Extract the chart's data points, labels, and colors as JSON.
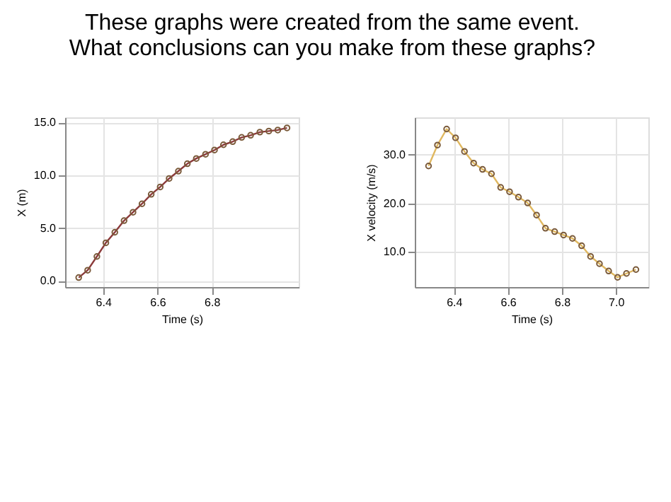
{
  "chart_data": [
    {
      "type": "line",
      "title": "These graphs were created from the same event.\nWhat conclusions can you make from these graphs?",
      "xlabel": "Time (s)",
      "ylabel": "X (m)",
      "x": [
        6.31,
        6.343,
        6.377,
        6.41,
        6.443,
        6.477,
        6.51,
        6.543,
        6.577,
        6.61,
        6.643,
        6.677,
        6.71,
        6.743,
        6.777,
        6.81,
        6.843,
        6.877,
        6.91,
        6.943,
        6.977,
        7.01,
        7.043,
        7.077
      ],
      "series": [
        {
          "color": "#8b3a3a",
          "values": [
            0.3,
            1.0,
            2.3,
            3.6,
            4.6,
            5.7,
            6.5,
            7.3,
            8.2,
            8.9,
            9.7,
            10.4,
            11.1,
            11.6,
            12.0,
            12.4,
            12.9,
            13.2,
            13.6,
            13.8,
            14.1,
            14.2,
            14.3,
            14.5
          ]
        }
      ],
      "xlim": [
        6.26,
        7.12
      ],
      "ylim": [
        -0.6,
        15.5
      ],
      "xticks": [
        6.4,
        6.6,
        6.8
      ],
      "yticks": [
        {
          "value": 0,
          "label": "0.0"
        },
        {
          "value": 5,
          "label": "5.0"
        },
        {
          "value": 10,
          "label": "10.0"
        },
        {
          "value": 15,
          "label": "15.0"
        }
      ],
      "grid": true,
      "marker": "circle",
      "line_style": "solid"
    },
    {
      "type": "line",
      "xlabel": "Time (s)",
      "ylabel": "X velocity (m/s)",
      "x": [
        6.306,
        6.339,
        6.373,
        6.406,
        6.439,
        6.473,
        6.506,
        6.539,
        6.573,
        6.606,
        6.639,
        6.673,
        6.706,
        6.739,
        6.773,
        6.806,
        6.839,
        6.873,
        6.906,
        6.939,
        6.973,
        7.006,
        7.039,
        7.074
      ],
      "series": [
        {
          "color": "#e0b860",
          "values": [
            27.7,
            32.0,
            35.3,
            33.5,
            30.7,
            28.3,
            27.0,
            26.1,
            23.3,
            22.4,
            21.3,
            20.1,
            17.6,
            14.9,
            14.2,
            13.5,
            12.8,
            11.3,
            9.1,
            7.6,
            6.1,
            4.8,
            5.6,
            6.4
          ]
        }
      ],
      "xlim": [
        6.255,
        7.12
      ],
      "ylim": [
        2.8,
        37.7
      ],
      "xticks": [
        {
          "value": 6.4,
          "label": "6.4"
        },
        {
          "value": 6.6,
          "label": "6.6"
        },
        {
          "value": 6.8,
          "label": "6.8"
        },
        {
          "value": 7.0,
          "label": "7.0"
        }
      ],
      "yticks": [
        {
          "value": 10,
          "label": "10.0"
        },
        {
          "value": 20,
          "label": "20.0"
        },
        {
          "value": 30,
          "label": "30.0"
        }
      ],
      "grid": true,
      "marker": "circle",
      "line_style": "solid"
    }
  ]
}
